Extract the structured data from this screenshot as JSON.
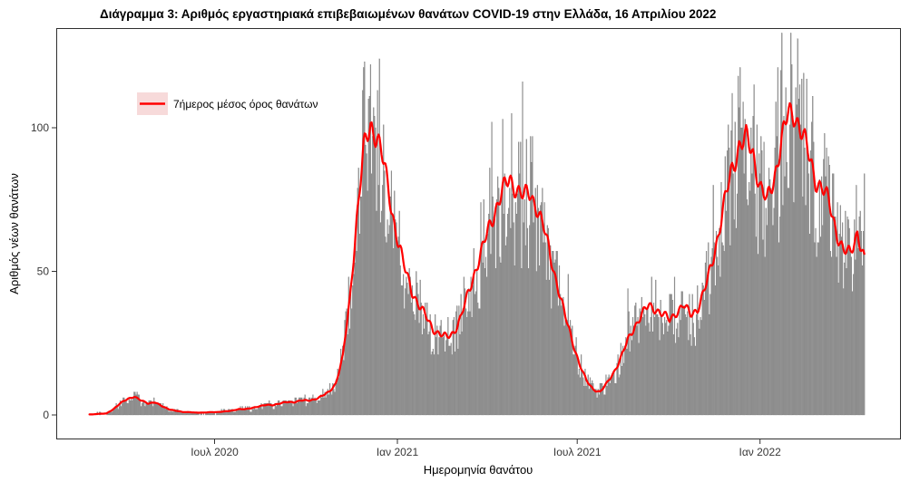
{
  "chart_data": {
    "type": "bar",
    "title": "Διάγραμμα 3: Αριθμός εργαστηριακά επιβεβαιωμένων θανάτων COVID-19 στην Ελλάδα, 16 Απριλίου 2022",
    "xlabel": "Ημερομηνία θανάτου",
    "ylabel": "Αριθμός νέων θανάτων",
    "legend": {
      "label": "7ήμερος μέσος όρος θανάτων",
      "line_color": "#ff0000",
      "key_fill": "#f7dada",
      "position": "inside top-left"
    },
    "bar_color": "#979797",
    "bar_edge_color": "#6e6e6e",
    "grid": "off",
    "y_ticks": [
      0,
      50,
      100
    ],
    "ylim": [
      -9,
      135
    ],
    "x_ticks": [
      {
        "label": "Ιουλ 2020",
        "date": "2020-07-01"
      },
      {
        "label": "Ιαν 2021",
        "date": "2021-01-01"
      },
      {
        "label": "Ιουλ 2021",
        "date": "2021-07-01"
      },
      {
        "label": "Ιαν 2022",
        "date": "2022-01-01"
      }
    ],
    "bars": {
      "start": "2020-02-26",
      "end": "2022-04-16",
      "seed": 20220416
    },
    "series_7day_avg": {
      "dates": [
        "2020-02-29",
        "2020-03-07",
        "2020-03-14",
        "2020-03-21",
        "2020-03-28",
        "2020-04-04",
        "2020-04-11",
        "2020-04-18",
        "2020-04-25",
        "2020-05-02",
        "2020-05-09",
        "2020-05-16",
        "2020-05-23",
        "2020-05-30",
        "2020-06-06",
        "2020-06-13",
        "2020-06-20",
        "2020-06-27",
        "2020-07-04",
        "2020-07-11",
        "2020-07-18",
        "2020-07-25",
        "2020-08-01",
        "2020-08-08",
        "2020-08-15",
        "2020-08-22",
        "2020-08-29",
        "2020-09-05",
        "2020-09-12",
        "2020-09-19",
        "2020-09-26",
        "2020-10-03",
        "2020-10-10",
        "2020-10-17",
        "2020-10-24",
        "2020-10-31",
        "2020-11-07",
        "2020-11-14",
        "2020-11-21",
        "2020-11-28",
        "2020-12-05",
        "2020-12-12",
        "2020-12-19",
        "2020-12-26",
        "2021-01-02",
        "2021-01-09",
        "2021-01-16",
        "2021-01-23",
        "2021-01-30",
        "2021-02-06",
        "2021-02-13",
        "2021-02-20",
        "2021-02-27",
        "2021-03-06",
        "2021-03-13",
        "2021-03-20",
        "2021-03-27",
        "2021-04-03",
        "2021-04-10",
        "2021-04-17",
        "2021-04-24",
        "2021-05-01",
        "2021-05-08",
        "2021-05-15",
        "2021-05-22",
        "2021-05-29",
        "2021-06-05",
        "2021-06-12",
        "2021-06-19",
        "2021-06-26",
        "2021-07-03",
        "2021-07-10",
        "2021-07-17",
        "2021-07-24",
        "2021-07-31",
        "2021-08-07",
        "2021-08-14",
        "2021-08-21",
        "2021-08-28",
        "2021-09-04",
        "2021-09-11",
        "2021-09-18",
        "2021-09-25",
        "2021-10-02",
        "2021-10-09",
        "2021-10-16",
        "2021-10-23",
        "2021-10-30",
        "2021-11-06",
        "2021-11-13",
        "2021-11-20",
        "2021-11-27",
        "2021-12-04",
        "2021-12-11",
        "2021-12-18",
        "2021-12-25",
        "2022-01-01",
        "2022-01-08",
        "2022-01-15",
        "2022-01-22",
        "2022-01-29",
        "2022-02-05",
        "2022-02-12",
        "2022-02-19",
        "2022-02-26",
        "2022-03-05",
        "2022-03-12",
        "2022-03-19",
        "2022-03-26",
        "2022-04-02",
        "2022-04-09",
        "2022-04-16"
      ],
      "values": [
        0.2,
        0.4,
        0.5,
        2,
        4,
        5.5,
        6.5,
        5,
        4,
        4.5,
        3,
        2,
        1.5,
        1,
        1,
        0.8,
        0.8,
        1,
        1,
        1.2,
        1.5,
        2,
        2,
        2.5,
        3,
        3.5,
        3.5,
        4,
        4.5,
        4.5,
        5,
        5,
        5.5,
        6.5,
        8,
        11,
        20,
        40,
        68,
        92,
        101,
        97,
        86,
        72,
        60,
        50,
        43,
        38,
        34,
        30,
        28,
        27,
        29,
        34,
        42,
        50,
        57,
        65,
        72,
        78,
        82,
        79,
        76,
        77,
        72,
        64,
        54,
        44,
        34,
        26,
        18,
        12,
        9,
        8,
        11,
        15,
        20,
        26,
        31,
        35,
        38,
        37,
        35,
        33,
        36,
        38,
        35,
        37,
        43,
        52,
        63,
        75,
        86,
        94,
        96,
        91,
        80,
        74,
        82,
        95,
        104,
        105,
        99,
        90,
        82,
        79,
        73,
        64,
        57,
        56,
        64,
        54
      ]
    }
  }
}
